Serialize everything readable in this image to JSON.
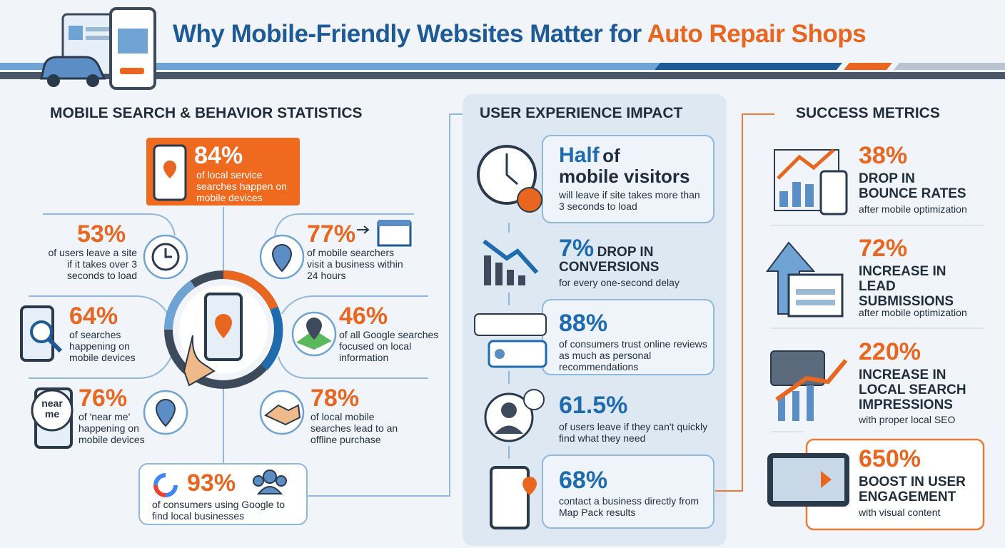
{
  "header": {
    "title": "Why Mobile-Friendly Websites Matter for",
    "title_highlight": "Auto Repair Shops"
  },
  "mobile_stats": {
    "heading": "MOBILE SEARCH & BEHAVIOR STATISTICS",
    "items": [
      {
        "value": "84%",
        "text": "of local service searches happen on mobile devices"
      },
      {
        "value": "53%",
        "text": "of users leave a site if it takes over 3 seconds to load"
      },
      {
        "value": "77%",
        "text": "of mobile searchers visit a business within 24 hours"
      },
      {
        "value": "64%",
        "text": "of searches happening on mobile devices"
      },
      {
        "value": "46%",
        "text": "of all Google searches focused on local information"
      },
      {
        "value": "76%",
        "text": "of 'near me' happening on mobile devices",
        "icon_label": "near me"
      },
      {
        "value": "78%",
        "text": "of local mobile searches lead to an offline purchase"
      },
      {
        "value": "93%",
        "text": "of consumers using Google to find local businesses"
      }
    ]
  },
  "user_experience": {
    "heading": "USER EXPERIENCE IMPACT",
    "items": [
      {
        "value": "Half",
        "value_suffix": "of",
        "label": "mobile visitors",
        "text": "will leave if site takes more than 3 seconds to load"
      },
      {
        "value": "7%",
        "label": "DROP IN",
        "label_2": "CONVERSIONS",
        "text": "for every one-second delay"
      },
      {
        "value": "88%",
        "text": "of consumers trust online reviews as much as personal recommendations"
      },
      {
        "value": "61.5%",
        "text": "of users leave if they can't quickly find what they need"
      },
      {
        "value": "68%",
        "text": "contact a business directly from Map Pack results"
      }
    ]
  },
  "success_metrics": {
    "heading": "SUCCESS METRICS",
    "items": [
      {
        "value": "38%",
        "label": "DROP IN BOUNCE RATES",
        "text": "after mobile optimization"
      },
      {
        "value": "72%",
        "label": "INCREASE IN LEAD SUBMISSIONS",
        "text": "after mobile optimization"
      },
      {
        "value": "220%",
        "label": "INCREASE IN LOCAL SEARCH IMPRESSIONS",
        "text": "with proper local SEO"
      },
      {
        "value": "650%",
        "label": "BOOST IN USER ENGAGEMENT",
        "text": "with visual content"
      }
    ]
  }
}
